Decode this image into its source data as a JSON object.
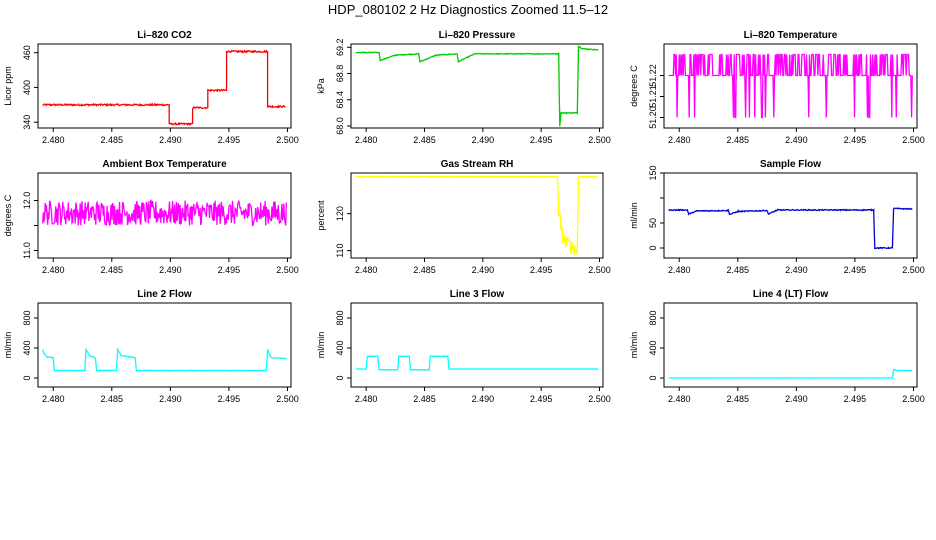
{
  "page": {
    "title": "HDP_080102  2 Hz Diagnostics Zoomed 11.5–12"
  },
  "colors": {
    "red": "#ff0000",
    "green": "#00cc00",
    "magenta": "#ff00ff",
    "yellow": "#ffff00",
    "blue": "#0000cc",
    "cyan": "#00ffff"
  },
  "chart_data": [
    {
      "type": "line",
      "title": "Li–820 CO2",
      "ylabel": "Licor ppm",
      "color": "#ff0000",
      "xlim": [
        2.4787,
        2.5003
      ],
      "ylim": [
        330,
        475
      ],
      "xticks": [
        2.48,
        2.485,
        2.49,
        2.495,
        2.5
      ],
      "xticklabels": [
        "2.480",
        "2.485",
        "2.490",
        "2.495",
        "2.500"
      ],
      "yticks": [
        340,
        400,
        460
      ],
      "yticklabels": [
        "340",
        "400",
        "460"
      ],
      "x": [
        2.4791,
        2.4899,
        2.4899,
        2.4919,
        2.4919,
        2.4932,
        2.4932,
        2.4948,
        2.4948,
        2.4983,
        2.4983,
        2.4998
      ],
      "y": [
        370,
        370,
        337,
        337,
        365,
        365,
        395,
        395,
        462,
        462,
        367,
        367
      ],
      "noise": 1.5
    },
    {
      "type": "line",
      "title": "Li–820 Pressure",
      "ylabel": "kPa",
      "color": "#00cc00",
      "xlim": [
        2.4787,
        2.5003
      ],
      "ylim": [
        67.97,
        69.25
      ],
      "xticks": [
        2.48,
        2.485,
        2.49,
        2.495,
        2.5
      ],
      "xticklabels": [
        "2.480",
        "2.485",
        "2.490",
        "2.495",
        "2.500"
      ],
      "yticks": [
        68.0,
        68.4,
        68.8,
        69.2
      ],
      "yticklabels": [
        "68.0",
        "68.4",
        "68.8",
        "69.2"
      ],
      "x": [
        2.4791,
        2.4811,
        2.4812,
        2.4825,
        2.4845,
        2.4846,
        2.486,
        2.4878,
        2.4879,
        2.4893,
        2.4965,
        2.4966,
        2.4967,
        2.4972,
        2.4981,
        2.4982,
        2.4985,
        2.4999
      ],
      "y": [
        69.12,
        69.12,
        69.0,
        69.08,
        69.1,
        68.98,
        69.08,
        69.1,
        68.98,
        69.1,
        69.1,
        68.0,
        68.2,
        68.2,
        68.2,
        69.22,
        69.18,
        69.16
      ],
      "noise": 0.006
    },
    {
      "type": "line",
      "title": "Li–820 Temperature",
      "ylabel": "degrees C",
      "color": "#ff00ff",
      "xlim": [
        2.4787,
        2.5003
      ],
      "ylim": [
        51.195,
        51.235
      ],
      "xticks": [
        2.48,
        2.485,
        2.49,
        2.495,
        2.5
      ],
      "xticklabels": [
        "2.480",
        "2.485",
        "2.490",
        "2.495",
        "2.500"
      ],
      "yticks": [
        51.2,
        51.21,
        51.22
      ],
      "yticklabels": [
        "51.20",
        "51.21",
        "51.22"
      ],
      "x": [
        2.4791,
        2.4999
      ],
      "y": [
        51.225,
        51.225
      ],
      "mode": "digital",
      "levels": [
        51.22,
        51.23,
        51.2
      ]
    },
    {
      "type": "line",
      "title": "Ambient Box Temperature",
      "ylabel": "degrees C",
      "color": "#ff00ff",
      "xlim": [
        2.4787,
        2.5003
      ],
      "ylim": [
        10.85,
        12.55
      ],
      "xticks": [
        2.48,
        2.485,
        2.49,
        2.495,
        2.5
      ],
      "xticklabels": [
        "2.480",
        "2.485",
        "2.490",
        "2.495",
        "2.500"
      ],
      "yticks": [
        11.0,
        11.5,
        12.0
      ],
      "yticklabels": [
        "11.0",
        "",
        "12.0"
      ],
      "x": [
        2.4791,
        2.4999
      ],
      "y": [
        11.75,
        11.75
      ],
      "noise": 0.25
    },
    {
      "type": "line",
      "title": "Gas Stream RH",
      "ylabel": "percent",
      "color": "#ffff00",
      "xlim": [
        2.4787,
        2.5003
      ],
      "ylim": [
        108,
        131
      ],
      "xticks": [
        2.48,
        2.485,
        2.49,
        2.495,
        2.5
      ],
      "xticklabels": [
        "2.480",
        "2.485",
        "2.490",
        "2.495",
        "2.500"
      ],
      "yticks": [
        110,
        120
      ],
      "yticklabels": [
        "110",
        "120"
      ],
      "x": [
        2.4791,
        2.4964,
        2.4965,
        2.4968,
        2.4972,
        2.4977,
        2.4981,
        2.4982,
        2.4999
      ],
      "y": [
        130,
        130,
        121,
        114,
        112,
        111,
        110,
        130,
        130
      ],
      "noise": 0.1,
      "noiseRange": [
        2.4965,
        2.4981
      ],
      "noiseLarge": 2.0
    },
    {
      "type": "line",
      "title": "Sample Flow",
      "ylabel": "ml/min",
      "color": "#0000cc",
      "xlim": [
        2.4787,
        2.5003
      ],
      "ylim": [
        -20,
        150
      ],
      "xticks": [
        2.48,
        2.485,
        2.49,
        2.495,
        2.5
      ],
      "xticklabels": [
        "2.480",
        "2.485",
        "2.490",
        "2.495",
        "2.500"
      ],
      "yticks": [
        0,
        50,
        100,
        150
      ],
      "yticklabels": [
        "0",
        "50",
        "",
        "150"
      ],
      "x": [
        2.4791,
        2.4807,
        2.4808,
        2.4815,
        2.4842,
        2.4843,
        2.485,
        2.4875,
        2.4876,
        2.4884,
        2.4966,
        2.4967,
        2.4982,
        2.4983,
        2.4999
      ],
      "y": [
        76,
        76,
        68,
        74,
        75,
        67,
        73,
        75,
        68,
        76,
        76,
        0,
        0,
        79,
        78
      ],
      "noise": 1.0
    },
    {
      "type": "line",
      "title": "Line 2 Flow",
      "ylabel": "ml/min",
      "color": "#00ffff",
      "xlim": [
        2.4787,
        2.5003
      ],
      "ylim": [
        -120,
        1000
      ],
      "xticks": [
        2.48,
        2.485,
        2.49,
        2.495,
        2.5
      ],
      "xticklabels": [
        "2.480",
        "2.485",
        "2.490",
        "2.495",
        "2.500"
      ],
      "yticks": [
        0,
        400,
        800
      ],
      "yticklabels": [
        "0",
        "400",
        "800"
      ],
      "x": [
        2.4791,
        2.4792,
        2.4795,
        2.48,
        2.4801,
        2.4827,
        2.4828,
        2.4831,
        2.4836,
        2.4837,
        2.4854,
        2.4855,
        2.4858,
        2.487,
        2.4871,
        2.4982,
        2.4983,
        2.4986,
        2.4999
      ],
      "y": [
        380,
        330,
        280,
        270,
        100,
        100,
        380,
        300,
        270,
        100,
        100,
        380,
        300,
        270,
        100,
        100,
        380,
        270,
        260
      ],
      "noise": 3
    },
    {
      "type": "line",
      "title": "Line 3 Flow",
      "ylabel": "ml/min",
      "color": "#00ffff",
      "xlim": [
        2.4787,
        2.5003
      ],
      "ylim": [
        -120,
        1000
      ],
      "xticks": [
        2.48,
        2.485,
        2.49,
        2.495,
        2.5
      ],
      "xticklabels": [
        "2.480",
        "2.485",
        "2.490",
        "2.495",
        "2.500"
      ],
      "yticks": [
        0,
        400,
        800
      ],
      "yticklabels": [
        "0",
        "400",
        "800"
      ],
      "x": [
        2.4791,
        2.48,
        2.4801,
        2.481,
        2.4811,
        2.4827,
        2.4828,
        2.4837,
        2.4838,
        2.4854,
        2.4855,
        2.487,
        2.4871,
        2.4999
      ],
      "y": [
        120,
        120,
        290,
        290,
        110,
        110,
        290,
        290,
        110,
        110,
        290,
        290,
        120,
        120
      ],
      "fixup": true,
      "noise": 2
    },
    {
      "type": "line",
      "title": "Line 4 (LT) Flow",
      "ylabel": "ml/min",
      "color": "#00ffff",
      "xlim": [
        2.4787,
        2.5003
      ],
      "ylim": [
        -120,
        1000
      ],
      "xticks": [
        2.48,
        2.485,
        2.49,
        2.495,
        2.5
      ],
      "xticklabels": [
        "2.480",
        "2.485",
        "2.490",
        "2.495",
        "2.500"
      ],
      "yticks": [
        0,
        400,
        800
      ],
      "yticklabels": [
        "0",
        "400",
        "800"
      ],
      "x": [
        2.4791,
        2.4982,
        2.4983,
        2.4986,
        2.4999
      ],
      "y": [
        0,
        0,
        110,
        100,
        100
      ],
      "noise": 1
    }
  ]
}
